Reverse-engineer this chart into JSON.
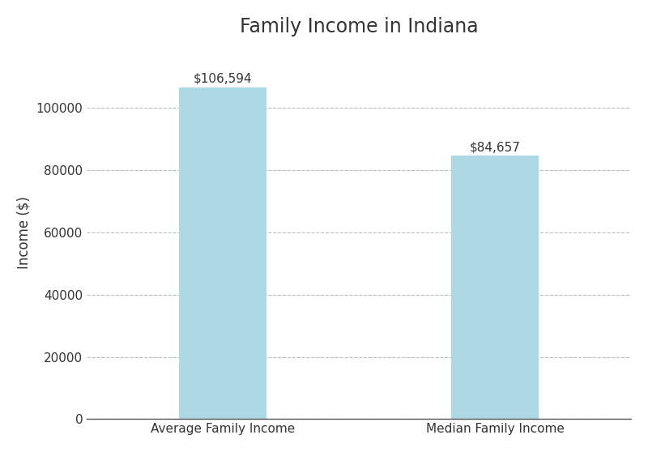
{
  "categories": [
    "Average Family Income",
    "Median Family Income"
  ],
  "values": [
    106594,
    84657
  ],
  "bar_labels": [
    "$106,594",
    "$84,657"
  ],
  "bar_color": "#add8e6",
  "title": "Family Income in Indiana",
  "ylabel": "Income ($)",
  "ylim": [
    0,
    120000
  ],
  "yticks": [
    0,
    20000,
    40000,
    60000,
    80000,
    100000
  ],
  "title_fontsize": 17,
  "label_fontsize": 12,
  "tick_fontsize": 11,
  "annotation_fontsize": 11,
  "bar_width": 0.32,
  "background_color": "#ffffff",
  "grid_color": "#bbbbbb",
  "grid_style": "--",
  "spine_color": "#555555"
}
